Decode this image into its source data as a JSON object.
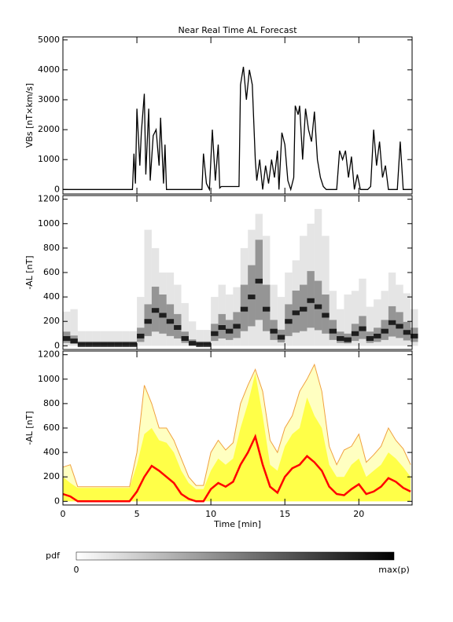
{
  "chart_data": [
    {
      "type": "line",
      "title": "Near Real Time AL Forecast",
      "ylabel": "VBs [nT×km/s]",
      "color": "#000000",
      "x": [
        0,
        4.7,
        4.8,
        4.9,
        5.0,
        5.2,
        5.3,
        5.5,
        5.6,
        5.8,
        5.9,
        6.1,
        6.3,
        6.5,
        6.6,
        6.8,
        6.9,
        7.0,
        9.4,
        9.5,
        9.7,
        9.9,
        10.1,
        10.3,
        10.5,
        10.6,
        10.7,
        11.9,
        12.0,
        12.2,
        12.4,
        12.6,
        12.8,
        13.0,
        13.1,
        13.3,
        13.5,
        13.7,
        13.9,
        14.1,
        14.3,
        14.5,
        14.6,
        14.8,
        15.0,
        15.2,
        15.4,
        15.6,
        15.7,
        15.9,
        16.0,
        16.2,
        16.4,
        16.6,
        16.8,
        17.0,
        17.2,
        17.4,
        17.6,
        17.8,
        18.5,
        18.7,
        18.9,
        19.1,
        19.3,
        19.5,
        19.7,
        19.9,
        20.1,
        20.6,
        20.8,
        21.0,
        21.2,
        21.4,
        21.6,
        21.8,
        22.0,
        22.6,
        22.8,
        23.0,
        23.6
      ],
      "values": [
        0,
        0,
        1200,
        200,
        2700,
        800,
        1900,
        3200,
        500,
        2700,
        300,
        1800,
        2000,
        800,
        2400,
        200,
        1500,
        0,
        0,
        1200,
        200,
        0,
        2000,
        300,
        1500,
        50,
        100,
        100,
        3500,
        4100,
        3000,
        4000,
        3500,
        1000,
        300,
        1000,
        0,
        800,
        200,
        1000,
        400,
        1300,
        0,
        1900,
        1500,
        300,
        0,
        400,
        2800,
        2500,
        2800,
        1000,
        2700,
        2000,
        1600,
        2600,
        1000,
        400,
        100,
        0,
        0,
        1300,
        1000,
        1300,
        400,
        1100,
        0,
        500,
        0,
        0,
        100,
        2000,
        800,
        1600,
        400,
        800,
        0,
        0,
        1600,
        0,
        0
      ],
      "xlim": [
        0,
        23.6
      ],
      "ylim": [
        -150,
        5100
      ],
      "yticks": [
        0,
        1000,
        2000,
        3000,
        4000,
        5000
      ]
    },
    {
      "type": "heatmap",
      "ylabel": "-AL [nT]",
      "color": "#000000",
      "x": [
        0,
        0.5,
        1,
        1.5,
        2,
        2.5,
        3,
        3.5,
        4,
        4.5,
        5,
        5.5,
        6,
        6.5,
        7,
        7.5,
        8,
        8.5,
        9,
        9.5,
        10,
        10.5,
        11,
        11.5,
        12,
        12.5,
        13,
        13.5,
        14,
        14.5,
        15,
        15.5,
        16,
        16.5,
        17,
        17.5,
        18,
        18.5,
        19,
        19.5,
        20,
        20.5,
        21,
        21.5,
        22,
        22.5,
        23,
        23.5
      ],
      "values": [
        60,
        40,
        10,
        10,
        10,
        10,
        10,
        10,
        10,
        10,
        80,
        200,
        290,
        250,
        200,
        150,
        60,
        20,
        10,
        10,
        100,
        150,
        120,
        160,
        300,
        400,
        530,
        300,
        120,
        70,
        200,
        270,
        300,
        370,
        320,
        250,
        120,
        60,
        50,
        100,
        140,
        60,
        80,
        120,
        190,
        160,
        110,
        80
      ],
      "upper": [
        280,
        300,
        120,
        120,
        120,
        120,
        120,
        120,
        120,
        120,
        400,
        950,
        800,
        600,
        600,
        500,
        350,
        200,
        130,
        130,
        400,
        500,
        420,
        480,
        800,
        950,
        1080,
        900,
        500,
        400,
        600,
        700,
        900,
        1000,
        1120,
        900,
        450,
        300,
        420,
        450,
        550,
        320,
        380,
        450,
        600,
        500,
        430,
        300
      ],
      "xlim": [
        0,
        23.6
      ],
      "ylim": [
        -30,
        1230
      ],
      "yticks": [
        0,
        200,
        400,
        600,
        800,
        1000,
        1200
      ]
    },
    {
      "type": "band",
      "ylabel": "-AL [nT]",
      "xlabel": "Time [min]",
      "median_color": "#ff0000",
      "band_color": "#ffff33",
      "max_color": "#f0a040",
      "x": [
        0,
        0.5,
        1,
        1.5,
        2,
        2.5,
        3,
        3.5,
        4,
        4.5,
        5,
        5.5,
        6,
        6.5,
        7,
        7.5,
        8,
        8.5,
        9,
        9.5,
        10,
        10.5,
        11,
        11.5,
        12,
        12.5,
        13,
        13.5,
        14,
        14.5,
        15,
        15.5,
        16,
        16.5,
        17,
        17.5,
        18,
        18.5,
        19,
        19.5,
        20,
        20.5,
        21,
        21.5,
        22,
        22.5,
        23,
        23.5
      ],
      "values": [
        60,
        40,
        0,
        0,
        0,
        0,
        0,
        0,
        0,
        0,
        80,
        200,
        290,
        250,
        200,
        150,
        60,
        20,
        0,
        0,
        100,
        150,
        120,
        160,
        300,
        400,
        530,
        300,
        120,
        70,
        200,
        270,
        300,
        370,
        320,
        250,
        120,
        60,
        50,
        100,
        140,
        60,
        80,
        120,
        190,
        160,
        110,
        80
      ],
      "band_upper": [
        200,
        150,
        110,
        110,
        110,
        110,
        110,
        110,
        110,
        110,
        300,
        550,
        600,
        500,
        480,
        400,
        250,
        150,
        100,
        100,
        250,
        350,
        300,
        350,
        600,
        800,
        1050,
        700,
        300,
        250,
        450,
        550,
        600,
        850,
        700,
        600,
        300,
        200,
        200,
        300,
        350,
        200,
        250,
        300,
        400,
        350,
        280,
        200
      ],
      "max": [
        280,
        300,
        120,
        120,
        120,
        120,
        120,
        120,
        120,
        120,
        400,
        950,
        800,
        600,
        600,
        500,
        350,
        200,
        130,
        130,
        400,
        500,
        420,
        480,
        800,
        950,
        1080,
        900,
        500,
        400,
        600,
        700,
        900,
        1000,
        1120,
        900,
        450,
        300,
        420,
        450,
        550,
        320,
        380,
        450,
        600,
        500,
        430,
        300
      ],
      "xlim": [
        0,
        23.6
      ],
      "xticks": [
        0,
        5,
        10,
        15,
        20
      ],
      "ylim": [
        -30,
        1230
      ],
      "yticks": [
        0,
        200,
        400,
        600,
        800,
        1000,
        1200
      ]
    }
  ],
  "colorbar": {
    "label": "pdf",
    "min_label": "0",
    "max_label": "max(p)"
  }
}
